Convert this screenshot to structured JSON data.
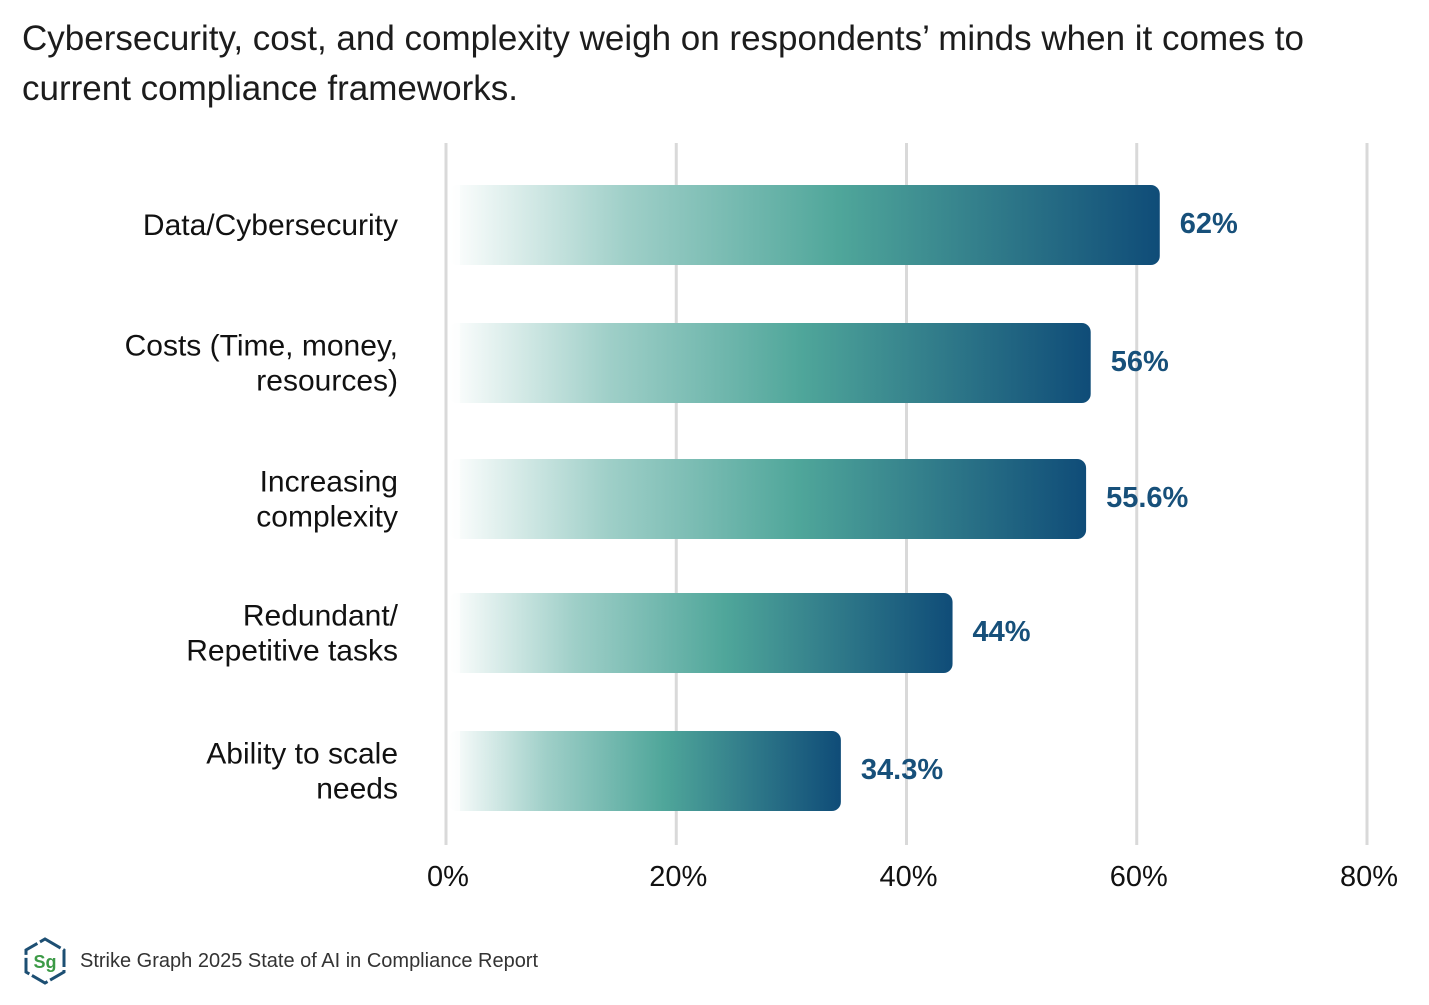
{
  "title": "Cybersecurity, cost, and complexity weigh on respondents’ minds when it comes to current compliance frameworks.",
  "chart_data": {
    "type": "bar",
    "orientation": "horizontal",
    "categories": [
      [
        "Data/Cybersecurity"
      ],
      [
        "Costs (Time, money,",
        "resources)"
      ],
      [
        "Increasing",
        "complexity"
      ],
      [
        "Redundant/",
        "Repetitive tasks"
      ],
      [
        "Ability to scale",
        "needs"
      ]
    ],
    "values": [
      62,
      56,
      55.6,
      44,
      34.3
    ],
    "value_labels": [
      "62%",
      "56%",
      "55.6%",
      "44%",
      "34.3%"
    ],
    "xlim": [
      0,
      80
    ],
    "ticks": [
      0,
      20,
      40,
      60,
      80
    ],
    "tick_labels": [
      "0%",
      "20%",
      "40%",
      "60%",
      "80%"
    ],
    "grid": "vertical",
    "colors": {
      "gradient_start": "#ffffff",
      "gradient_mid": "#4fa69a",
      "gradient_end": "#0f4c78",
      "value_label": "#17507a"
    }
  },
  "footer": {
    "logo_text": "Sg",
    "source": "Strike Graph 2025 State of AI in Compliance Report"
  }
}
